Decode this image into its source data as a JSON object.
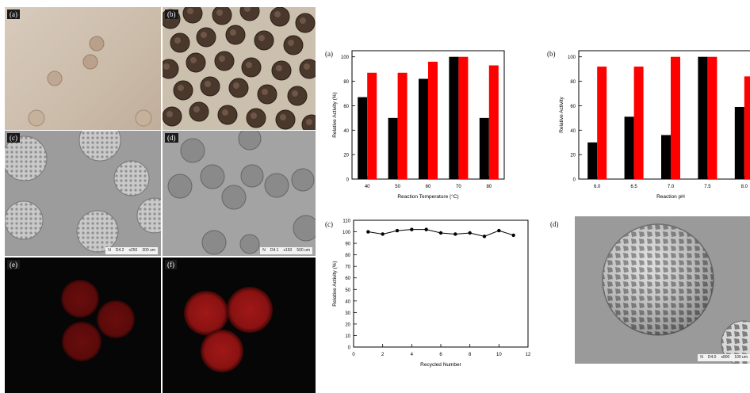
{
  "panel_labels": {
    "micro_a": "(a)",
    "micro_b": "(b)",
    "micro_c": "(c)",
    "micro_d": "(d)",
    "micro_e": "(e)",
    "micro_f": "(f)",
    "chart_a": "(a)",
    "chart_b": "(b)",
    "chart_c": "(c)",
    "chart_d": "(d)"
  },
  "scalebars": {
    "c": {
      "mode": "N",
      "wd": "D4.2",
      "mag": "x250",
      "scale": "300 um"
    },
    "d": {
      "mode": "N",
      "wd": "D4.1",
      "mag": "x150",
      "scale": "500 um"
    },
    "sem_d": {
      "mode": "N",
      "wd": "D4.0",
      "mag": "x800",
      "scale": "100 um"
    }
  },
  "colors": {
    "black_series": "#000000",
    "red_series": "#ff0000",
    "fluorescence": "#8a0f0f"
  },
  "chart_data": [
    {
      "type": "bar",
      "panel": "(a)",
      "categories": [
        "40",
        "50",
        "60",
        "70",
        "80"
      ],
      "series": [
        {
          "color": "#000000",
          "values": [
            67,
            50,
            82,
            100,
            50
          ]
        },
        {
          "color": "#ff0000",
          "values": [
            87,
            87,
            96,
            100,
            93
          ]
        }
      ],
      "xlabel": "Reaction Temperature (°C)",
      "ylabel": "Relative Activity (%)",
      "ylim": [
        0,
        105
      ],
      "yticks": [
        "0",
        "20",
        "40",
        "60",
        "80",
        "100"
      ]
    },
    {
      "type": "bar",
      "panel": "(b)",
      "categories": [
        "6.0",
        "6.5",
        "7.0",
        "7.5",
        "8.0"
      ],
      "series": [
        {
          "color": "#000000",
          "values": [
            30,
            51,
            36,
            100,
            59
          ]
        },
        {
          "color": "#ff0000",
          "values": [
            92,
            92,
            100,
            100,
            84
          ]
        }
      ],
      "xlabel": "Reaction pH",
      "ylabel": "Relative Activity",
      "ylim": [
        0,
        105
      ],
      "yticks": [
        "0",
        "20",
        "40",
        "60",
        "80",
        "100"
      ]
    },
    {
      "type": "line",
      "panel": "(c)",
      "x": [
        1,
        2,
        3,
        4,
        5,
        6,
        7,
        8,
        9,
        10,
        11
      ],
      "y": [
        100,
        98,
        101,
        102,
        102,
        99,
        98,
        99,
        96,
        101,
        97
      ],
      "xlabel": "Recycled Number",
      "ylabel": "Relative Activity (%)",
      "xlim": [
        0,
        12
      ],
      "ylim": [
        0,
        110
      ],
      "xticks": [
        "0",
        "2",
        "4",
        "6",
        "8",
        "10",
        "12"
      ],
      "yticks": [
        "0",
        "10",
        "20",
        "30",
        "40",
        "50",
        "60",
        "70",
        "80",
        "90",
        "100",
        "110"
      ]
    }
  ]
}
